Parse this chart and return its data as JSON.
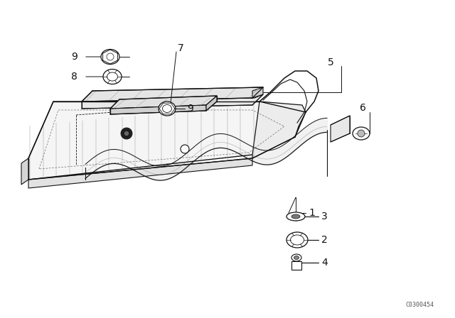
{
  "bg": "#ffffff",
  "lc": "#111111",
  "fig_w": 6.4,
  "fig_h": 4.48,
  "dpi": 100,
  "watermark": "C0300454",
  "lw": 0.85,
  "label_fs": 9.5
}
